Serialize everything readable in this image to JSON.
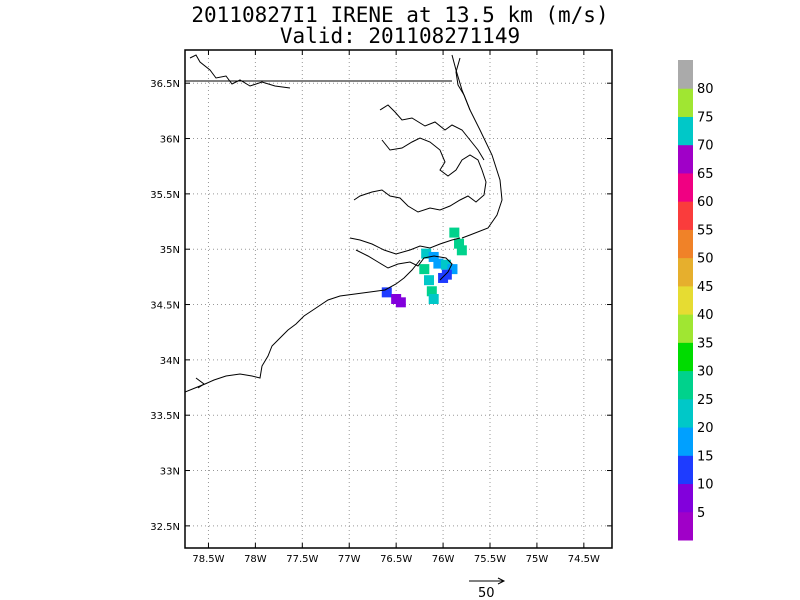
{
  "title": {
    "line1": "20110827I1 IRENE at 13.5 km (m/s)",
    "line2": "Valid: 201108271149"
  },
  "map": {
    "lon_range": [
      -78.75,
      -74.2
    ],
    "lat_range": [
      32.3,
      36.8
    ],
    "lon_ticks": [
      {
        "value": -78.5,
        "label": "78.5W"
      },
      {
        "value": -78.0,
        "label": "78W"
      },
      {
        "value": -77.5,
        "label": "77.5W"
      },
      {
        "value": -77.0,
        "label": "77W"
      },
      {
        "value": -76.5,
        "label": "76.5W"
      },
      {
        "value": -76.0,
        "label": "76W"
      },
      {
        "value": -75.5,
        "label": "75.5W"
      },
      {
        "value": -75.0,
        "label": "75W"
      },
      {
        "value": -74.5,
        "label": "74.5W"
      }
    ],
    "lat_ticks": [
      {
        "value": 36.5,
        "label": "36.5N"
      },
      {
        "value": 36.0,
        "label": "36N"
      },
      {
        "value": 35.5,
        "label": "35.5N"
      },
      {
        "value": 35.0,
        "label": "35N"
      },
      {
        "value": 34.5,
        "label": "34.5N"
      },
      {
        "value": 34.0,
        "label": "34N"
      },
      {
        "value": 33.5,
        "label": "33.5N"
      },
      {
        "value": 33.0,
        "label": "33N"
      },
      {
        "value": 32.5,
        "label": "32.5N"
      }
    ],
    "grid": true,
    "wind_cells": [
      {
        "lon": -75.88,
        "lat": 35.15,
        "speed": 28
      },
      {
        "lon": -75.83,
        "lat": 35.05,
        "speed": 29
      },
      {
        "lon": -75.8,
        "lat": 34.99,
        "speed": 27
      },
      {
        "lon": -76.18,
        "lat": 34.96,
        "speed": 20
      },
      {
        "lon": -76.1,
        "lat": 34.93,
        "speed": 19
      },
      {
        "lon": -76.05,
        "lat": 34.87,
        "speed": 18
      },
      {
        "lon": -75.97,
        "lat": 34.86,
        "speed": 20
      },
      {
        "lon": -75.9,
        "lat": 34.82,
        "speed": 19
      },
      {
        "lon": -76.2,
        "lat": 34.82,
        "speed": 25
      },
      {
        "lon": -76.15,
        "lat": 34.72,
        "speed": 24
      },
      {
        "lon": -76.12,
        "lat": 34.62,
        "speed": 25
      },
      {
        "lon": -76.1,
        "lat": 34.55,
        "speed": 24
      },
      {
        "lon": -75.96,
        "lat": 34.77,
        "speed": 14
      },
      {
        "lon": -76.0,
        "lat": 34.74,
        "speed": 13
      },
      {
        "lon": -76.6,
        "lat": 34.61,
        "speed": 13
      },
      {
        "lon": -76.5,
        "lat": 34.55,
        "speed": 8
      },
      {
        "lon": -76.45,
        "lat": 34.52,
        "speed": 7
      }
    ]
  },
  "colorbar": {
    "colors": [
      "#a000c8",
      "#8200dc",
      "#1e3cff",
      "#00a0ff",
      "#00c8c8",
      "#00d28c",
      "#00dc00",
      "#a0e632",
      "#e6dc32",
      "#e6af2d",
      "#f08228",
      "#fa3c3c",
      "#f00082",
      "#a000c8",
      "#00c8c8",
      "#a0e632",
      "#aaaaaa"
    ],
    "labels": [
      "5",
      "10",
      "15",
      "20",
      "25",
      "30",
      "35",
      "40",
      "45",
      "50",
      "55",
      "60",
      "65",
      "70",
      "75",
      "80"
    ]
  },
  "reference_vector": {
    "label": "50"
  }
}
